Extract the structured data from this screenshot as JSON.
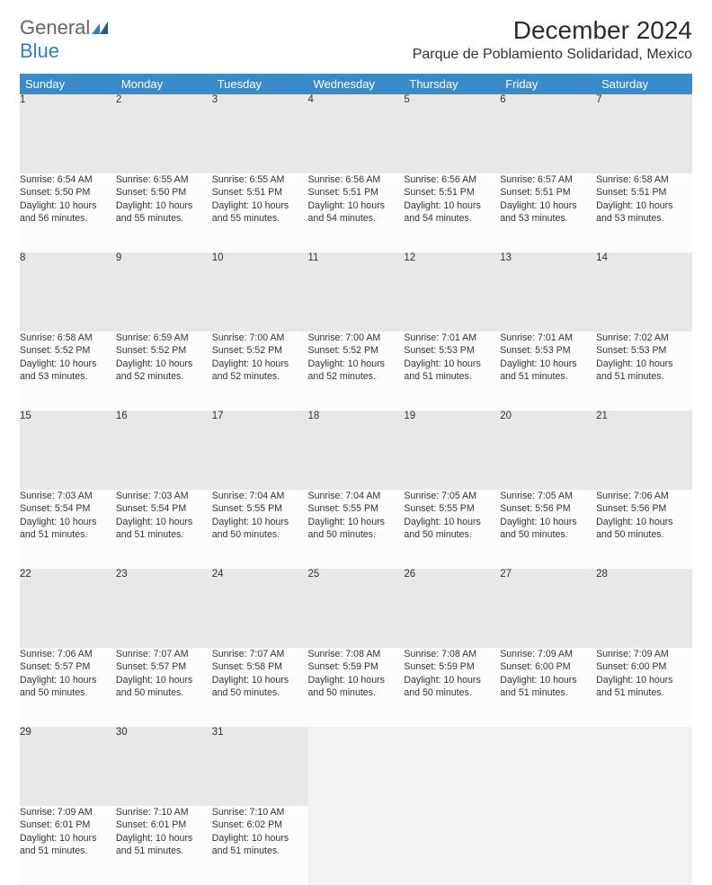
{
  "logo": {
    "text1": "General",
    "text2": "Blue"
  },
  "title": "December 2024",
  "location": "Parque de Poblamiento Solidaridad, Mexico",
  "colors": {
    "header_bg": "#3a8bca",
    "header_text": "#ffffff",
    "daynum_bg": "#e8e8e8",
    "cell_bg": "#fcfcfc",
    "border": "#3a8bca",
    "logo_general": "#666666",
    "logo_blue": "#2f7fc1"
  },
  "weekdays": [
    "Sunday",
    "Monday",
    "Tuesday",
    "Wednesday",
    "Thursday",
    "Friday",
    "Saturday"
  ],
  "weeks": [
    [
      {
        "n": "1",
        "sr": "6:54 AM",
        "ss": "5:50 PM",
        "dh": "10",
        "dm": "56"
      },
      {
        "n": "2",
        "sr": "6:55 AM",
        "ss": "5:50 PM",
        "dh": "10",
        "dm": "55"
      },
      {
        "n": "3",
        "sr": "6:55 AM",
        "ss": "5:51 PM",
        "dh": "10",
        "dm": "55"
      },
      {
        "n": "4",
        "sr": "6:56 AM",
        "ss": "5:51 PM",
        "dh": "10",
        "dm": "54"
      },
      {
        "n": "5",
        "sr": "6:56 AM",
        "ss": "5:51 PM",
        "dh": "10",
        "dm": "54"
      },
      {
        "n": "6",
        "sr": "6:57 AM",
        "ss": "5:51 PM",
        "dh": "10",
        "dm": "53"
      },
      {
        "n": "7",
        "sr": "6:58 AM",
        "ss": "5:51 PM",
        "dh": "10",
        "dm": "53"
      }
    ],
    [
      {
        "n": "8",
        "sr": "6:58 AM",
        "ss": "5:52 PM",
        "dh": "10",
        "dm": "53"
      },
      {
        "n": "9",
        "sr": "6:59 AM",
        "ss": "5:52 PM",
        "dh": "10",
        "dm": "52"
      },
      {
        "n": "10",
        "sr": "7:00 AM",
        "ss": "5:52 PM",
        "dh": "10",
        "dm": "52"
      },
      {
        "n": "11",
        "sr": "7:00 AM",
        "ss": "5:52 PM",
        "dh": "10",
        "dm": "52"
      },
      {
        "n": "12",
        "sr": "7:01 AM",
        "ss": "5:53 PM",
        "dh": "10",
        "dm": "51"
      },
      {
        "n": "13",
        "sr": "7:01 AM",
        "ss": "5:53 PM",
        "dh": "10",
        "dm": "51"
      },
      {
        "n": "14",
        "sr": "7:02 AM",
        "ss": "5:53 PM",
        "dh": "10",
        "dm": "51"
      }
    ],
    [
      {
        "n": "15",
        "sr": "7:03 AM",
        "ss": "5:54 PM",
        "dh": "10",
        "dm": "51"
      },
      {
        "n": "16",
        "sr": "7:03 AM",
        "ss": "5:54 PM",
        "dh": "10",
        "dm": "51"
      },
      {
        "n": "17",
        "sr": "7:04 AM",
        "ss": "5:55 PM",
        "dh": "10",
        "dm": "50"
      },
      {
        "n": "18",
        "sr": "7:04 AM",
        "ss": "5:55 PM",
        "dh": "10",
        "dm": "50"
      },
      {
        "n": "19",
        "sr": "7:05 AM",
        "ss": "5:55 PM",
        "dh": "10",
        "dm": "50"
      },
      {
        "n": "20",
        "sr": "7:05 AM",
        "ss": "5:56 PM",
        "dh": "10",
        "dm": "50"
      },
      {
        "n": "21",
        "sr": "7:06 AM",
        "ss": "5:56 PM",
        "dh": "10",
        "dm": "50"
      }
    ],
    [
      {
        "n": "22",
        "sr": "7:06 AM",
        "ss": "5:57 PM",
        "dh": "10",
        "dm": "50"
      },
      {
        "n": "23",
        "sr": "7:07 AM",
        "ss": "5:57 PM",
        "dh": "10",
        "dm": "50"
      },
      {
        "n": "24",
        "sr": "7:07 AM",
        "ss": "5:58 PM",
        "dh": "10",
        "dm": "50"
      },
      {
        "n": "25",
        "sr": "7:08 AM",
        "ss": "5:59 PM",
        "dh": "10",
        "dm": "50"
      },
      {
        "n": "26",
        "sr": "7:08 AM",
        "ss": "5:59 PM",
        "dh": "10",
        "dm": "50"
      },
      {
        "n": "27",
        "sr": "7:09 AM",
        "ss": "6:00 PM",
        "dh": "10",
        "dm": "51"
      },
      {
        "n": "28",
        "sr": "7:09 AM",
        "ss": "6:00 PM",
        "dh": "10",
        "dm": "51"
      }
    ],
    [
      {
        "n": "29",
        "sr": "7:09 AM",
        "ss": "6:01 PM",
        "dh": "10",
        "dm": "51"
      },
      {
        "n": "30",
        "sr": "7:10 AM",
        "ss": "6:01 PM",
        "dh": "10",
        "dm": "51"
      },
      {
        "n": "31",
        "sr": "7:10 AM",
        "ss": "6:02 PM",
        "dh": "10",
        "dm": "51"
      },
      null,
      null,
      null,
      null
    ]
  ],
  "labels": {
    "sunrise": "Sunrise:",
    "sunset": "Sunset:",
    "daylight": "Daylight:",
    "hours": "hours",
    "and": "and",
    "minutes": "minutes."
  }
}
